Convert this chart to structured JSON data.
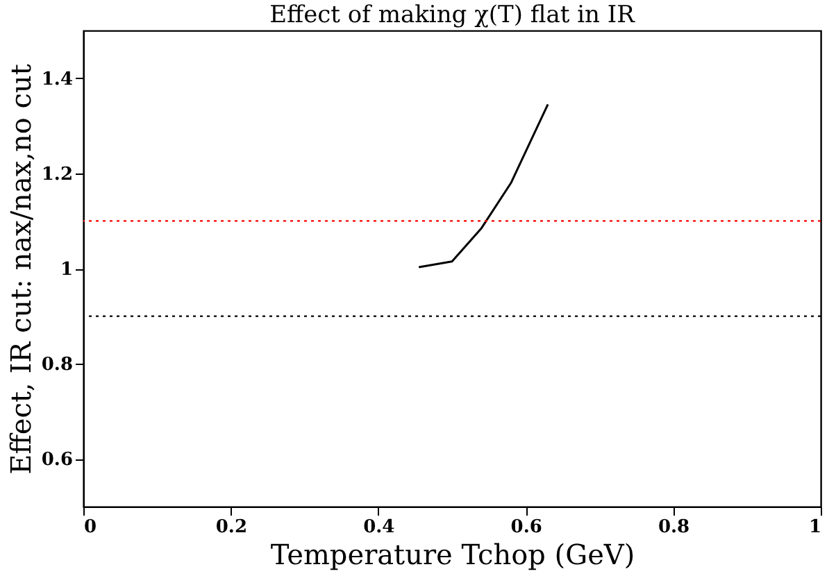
{
  "chart_data": {
    "type": "line",
    "title": "Effect of making χ(T) flat in IR",
    "xlabel": "Temperature Tchop (GeV)",
    "ylabel": "Effect, IR cut: nax/nax,no cut",
    "x": [
      0.455,
      0.5,
      0.54,
      0.58,
      0.63
    ],
    "series": [
      {
        "color": "#000000",
        "values": [
          1.003,
          1.015,
          1.085,
          1.18,
          1.345
        ]
      }
    ],
    "xlim": [
      0,
      1
    ],
    "xticks": [
      0,
      0.2,
      0.4,
      0.6,
      0.8,
      1
    ],
    "ylim": [
      0.5,
      1.5
    ],
    "yticks": [
      0.6,
      0.8,
      1,
      1.2,
      1.4
    ],
    "ref_lines": [
      {
        "axis": "y",
        "value": 1.1,
        "color": "#ff0000",
        "line_style": "dotted"
      },
      {
        "axis": "y",
        "value": 0.9,
        "color": "#000000",
        "line_style": "dotted"
      }
    ],
    "grid": false,
    "marker": "none",
    "line_style": "solid"
  }
}
